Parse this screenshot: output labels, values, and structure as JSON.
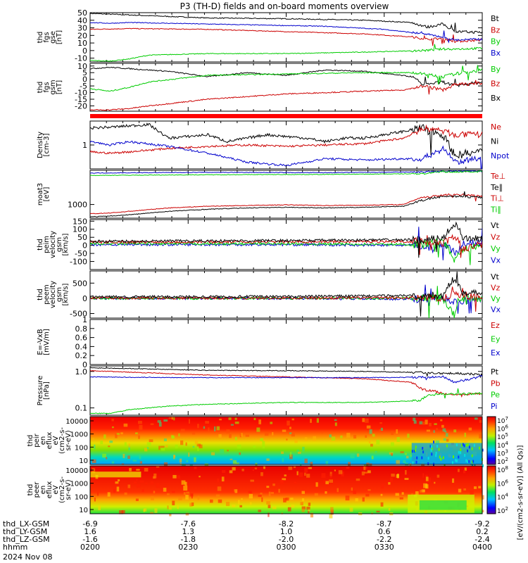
{
  "title": "P3 (TH-D) fields and on-board moments overview",
  "colors": {
    "black": "#000000",
    "red": "#cc0000",
    "green": "#00cc00",
    "blue": "#0000cc"
  },
  "chart_data": [
    {
      "type": "line",
      "ylabel": [
        "thd",
        "fgs",
        "gse",
        "[nT]"
      ],
      "ylim": [
        -15,
        50
      ],
      "yticks": [
        -10,
        0,
        10,
        20,
        30,
        40,
        50
      ],
      "legend": [
        {
          "name": "Bt",
          "color": "#000000"
        },
        {
          "name": "Bz",
          "color": "#cc0000"
        },
        {
          "name": "By",
          "color": "#00cc00"
        },
        {
          "name": "Bx",
          "color": "#0000cc"
        }
      ],
      "series": [
        {
          "name": "Bt",
          "color": "#000000",
          "noise": 0.6,
          "spikes": 4,
          "x": [
            0,
            0.05,
            0.1,
            0.3,
            0.5,
            0.7,
            0.82,
            0.86,
            0.9,
            0.93,
            1.0
          ],
          "y": [
            49,
            48,
            47,
            43,
            42,
            40,
            37,
            31,
            35,
            25,
            24
          ]
        },
        {
          "name": "Bz",
          "color": "#cc0000",
          "noise": 0.5,
          "spikes": 4,
          "x": [
            0,
            0.1,
            0.3,
            0.5,
            0.7,
            0.82,
            0.86,
            0.9,
            0.93,
            1.0
          ],
          "y": [
            28,
            29,
            28,
            25,
            22,
            18,
            15,
            16,
            12,
            14
          ]
        },
        {
          "name": "By",
          "color": "#00cc00",
          "noise": 0.5,
          "spikes": 6,
          "x": [
            0,
            0.05,
            0.1,
            0.15,
            0.3,
            0.5,
            0.7,
            0.85,
            0.9,
            0.93,
            1.0
          ],
          "y": [
            -13,
            -14,
            -11,
            -6,
            -4,
            -4,
            -2,
            0,
            2,
            2,
            3
          ]
        },
        {
          "name": "Bx",
          "color": "#0000cc",
          "noise": 0.5,
          "spikes": 4,
          "x": [
            0,
            0.05,
            0.1,
            0.2,
            0.4,
            0.6,
            0.75,
            0.85,
            0.9,
            0.93,
            1.0
          ],
          "y": [
            37,
            36,
            37,
            36,
            34,
            32,
            28,
            22,
            18,
            14,
            15
          ]
        }
      ]
    },
    {
      "type": "line",
      "ylabel": [
        "thd",
        "fgs",
        "gsm",
        "[nT]"
      ],
      "ylim": [
        -24,
        12
      ],
      "yticks": [
        -20,
        -15,
        -10,
        -5,
        0,
        5,
        10
      ],
      "legend": [
        {
          "name": "By",
          "color": "#00cc00"
        },
        {
          "name": "Bz",
          "color": "#cc0000"
        },
        {
          "name": "Bx",
          "color": "#000000"
        }
      ],
      "series": [
        {
          "name": "Bx",
          "color": "#000000",
          "noise": 0.4,
          "spikes": 6,
          "x": [
            0,
            0.05,
            0.1,
            0.2,
            0.3,
            0.4,
            0.5,
            0.6,
            0.7,
            0.82,
            0.85,
            0.9,
            0.93,
            1.0
          ],
          "y": [
            8,
            9,
            8,
            6,
            2,
            5,
            3,
            7,
            6,
            2,
            -4,
            -2,
            -5,
            -2
          ]
        },
        {
          "name": "By",
          "color": "#00cc00",
          "noise": 0.4,
          "spikes": 6,
          "x": [
            0,
            0.05,
            0.1,
            0.15,
            0.3,
            0.5,
            0.7,
            0.82,
            0.87,
            0.9,
            0.93,
            1.0
          ],
          "y": [
            -7,
            -9,
            -6,
            -2,
            3,
            4,
            5,
            5,
            3,
            2,
            4,
            7
          ]
        },
        {
          "name": "Bz",
          "color": "#cc0000",
          "noise": 0.4,
          "spikes": 6,
          "x": [
            0,
            0.05,
            0.1,
            0.15,
            0.3,
            0.5,
            0.7,
            0.8,
            0.85,
            0.9,
            0.93,
            1.0
          ],
          "y": [
            -23,
            -23,
            -22,
            -20,
            -15,
            -11,
            -9,
            -8,
            -5,
            -8,
            -4,
            -3
          ]
        }
      ]
    },
    {
      "type": "line",
      "ylabel": [
        "Density",
        "[cm-3]"
      ],
      "ylim": [
        -0.35,
        0.35
      ],
      "yticks": [
        0
      ],
      "yticklabels": [
        "1"
      ],
      "legend": [
        {
          "name": "Ne",
          "color": "#cc0000"
        },
        {
          "name": "Ni",
          "color": "#000000"
        },
        {
          "name": "Npot",
          "color": "#0000cc"
        }
      ],
      "series": [
        {
          "name": "Ni",
          "color": "#000000",
          "noise": 0.02,
          "spikes": 6,
          "x": [
            0,
            0.05,
            0.1,
            0.15,
            0.2,
            0.3,
            0.35,
            0.45,
            0.55,
            0.6,
            0.65,
            0.7,
            0.8,
            0.85,
            0.9,
            0.93,
            1.0
          ],
          "y": [
            0.25,
            0.26,
            0.28,
            0.3,
            0.1,
            0.15,
            0.05,
            0.15,
            0.1,
            0.05,
            0.1,
            0.1,
            0.2,
            0.25,
            0.15,
            -0.15,
            -0.1
          ]
        },
        {
          "name": "Ne",
          "color": "#cc0000",
          "noise": 0.015,
          "spikes": 3,
          "x": [
            0,
            0.05,
            0.1,
            0.2,
            0.3,
            0.4,
            0.5,
            0.6,
            0.7,
            0.8,
            0.85,
            0.9,
            0.93,
            1.0
          ],
          "y": [
            -0.1,
            -0.12,
            -0.1,
            -0.05,
            -0.02,
            0.0,
            -0.02,
            0.0,
            0.02,
            0.1,
            0.25,
            0.2,
            0.15,
            0.15
          ]
        },
        {
          "name": "Npot",
          "color": "#0000cc",
          "noise": 0.015,
          "spikes": 6,
          "x": [
            0,
            0.05,
            0.1,
            0.2,
            0.3,
            0.4,
            0.5,
            0.6,
            0.7,
            0.8,
            0.85,
            0.9,
            0.93,
            1.0
          ],
          "y": [
            0.05,
            0.0,
            0.05,
            -0.02,
            -0.12,
            -0.25,
            -0.3,
            -0.2,
            -0.22,
            -0.2,
            -0.2,
            -0.05,
            -0.25,
            -0.2
          ]
        }
      ]
    },
    {
      "type": "line",
      "ylabel": [
        "moat3",
        "[eV]"
      ],
      "ylim": [
        2.6,
        4.0
      ],
      "yticks": [
        3
      ],
      "yticklabels": [
        "1000"
      ],
      "legend": [
        {
          "name": "Te⊥",
          "color": "#cc0000"
        },
        {
          "name": "Te∥",
          "color": "#000000"
        },
        {
          "name": "Ti⊥",
          "color": "#cc0000"
        },
        {
          "name": "Ti∥",
          "color": "#00cc00"
        }
      ],
      "series": [
        {
          "name": "Ti⊥",
          "color": "#0000cc",
          "noise": 0.008,
          "spikes": 2,
          "x": [
            0,
            0.3,
            0.6,
            0.85,
            0.9,
            1.0
          ],
          "y": [
            3.92,
            3.94,
            3.93,
            3.95,
            3.97,
            3.98
          ]
        },
        {
          "name": "Ti∥",
          "color": "#00cc00",
          "noise": 0.008,
          "spikes": 2,
          "x": [
            0,
            0.3,
            0.6,
            0.85,
            0.87,
            0.9,
            1.0
          ],
          "y": [
            3.85,
            3.87,
            3.88,
            3.9,
            3.93,
            3.95,
            3.96
          ]
        },
        {
          "name": "Te⊥",
          "color": "#cc0000",
          "noise": 0.01,
          "spikes": 3,
          "x": [
            0,
            0.05,
            0.1,
            0.2,
            0.3,
            0.4,
            0.5,
            0.6,
            0.7,
            0.8,
            0.84,
            0.88,
            0.92,
            1.0
          ],
          "y": [
            2.73,
            2.75,
            2.8,
            2.9,
            2.95,
            2.97,
            2.99,
            2.97,
            2.98,
            3.0,
            3.2,
            3.25,
            3.3,
            3.25
          ]
        },
        {
          "name": "Te∥",
          "color": "#000000",
          "noise": 0.01,
          "spikes": 3,
          "x": [
            0,
            0.05,
            0.1,
            0.2,
            0.3,
            0.4,
            0.5,
            0.6,
            0.7,
            0.8,
            0.84,
            0.88,
            0.92,
            1.0
          ],
          "y": [
            2.64,
            2.66,
            2.7,
            2.8,
            2.86,
            2.9,
            2.92,
            2.9,
            2.92,
            2.95,
            3.1,
            3.2,
            3.25,
            3.2
          ]
        }
      ]
    },
    {
      "type": "line",
      "ylabel": [
        "thd",
        "peim",
        "velocity",
        "gsm",
        "[km/s]"
      ],
      "ylim": [
        -150,
        160
      ],
      "yticks": [
        -100,
        -50,
        0,
        50,
        100,
        150
      ],
      "legend": [
        {
          "name": "Vt",
          "color": "#000000"
        },
        {
          "name": "Vz",
          "color": "#cc0000"
        },
        {
          "name": "Vy",
          "color": "#00cc00"
        },
        {
          "name": "Vx",
          "color": "#0000cc"
        }
      ],
      "series": [
        {
          "name": "Vx",
          "color": "#0000cc",
          "noise": 8,
          "spikes": 8,
          "x": [
            0,
            0.5,
            0.85,
            0.88,
            0.9,
            0.93,
            0.95,
            1.0
          ],
          "y": [
            5,
            5,
            0,
            -30,
            20,
            -50,
            10,
            10
          ]
        },
        {
          "name": "Vy",
          "color": "#00cc00",
          "noise": 8,
          "spikes": 8,
          "x": [
            0,
            0.5,
            0.85,
            0.9,
            0.93,
            0.95,
            1.0
          ],
          "y": [
            10,
            10,
            5,
            30,
            -90,
            -20,
            0
          ]
        },
        {
          "name": "Vz",
          "color": "#cc0000",
          "noise": 8,
          "spikes": 8,
          "x": [
            0,
            0.5,
            0.85,
            0.9,
            0.93,
            0.95,
            1.0
          ],
          "y": [
            20,
            22,
            25,
            10,
            60,
            -20,
            5
          ]
        },
        {
          "name": "Vt",
          "color": "#000000",
          "noise": 8,
          "spikes": 8,
          "x": [
            0,
            0.5,
            0.85,
            0.9,
            0.93,
            0.95,
            1.0
          ],
          "y": [
            25,
            30,
            35,
            40,
            140,
            50,
            40
          ]
        }
      ]
    },
    {
      "type": "line",
      "ylabel": [
        "thd",
        "peem",
        "velocity",
        "gsm",
        "[km/s]"
      ],
      "ylim": [
        -650,
        900
      ],
      "yticks": [
        -500,
        0,
        500
      ],
      "legend": [
        {
          "name": "Vt",
          "color": "#000000"
        },
        {
          "name": "Vz",
          "color": "#cc0000"
        },
        {
          "name": "Vy",
          "color": "#00cc00"
        },
        {
          "name": "Vx",
          "color": "#0000cc"
        }
      ],
      "series": [
        {
          "name": "Vx",
          "color": "#0000cc",
          "noise": 40,
          "spikes": 10,
          "x": [
            0,
            0.5,
            0.9,
            0.93,
            1.0
          ],
          "y": [
            0,
            0,
            -30,
            -100,
            -20
          ]
        },
        {
          "name": "Vy",
          "color": "#00cc00",
          "noise": 40,
          "spikes": 10,
          "x": [
            0,
            0.5,
            0.9,
            0.93,
            0.94,
            1.0
          ],
          "y": [
            0,
            0,
            10,
            -600,
            0,
            0
          ]
        },
        {
          "name": "Vz",
          "color": "#cc0000",
          "noise": 40,
          "spikes": 10,
          "x": [
            0,
            0.5,
            0.9,
            0.93,
            1.0
          ],
          "y": [
            10,
            10,
            20,
            150,
            30
          ]
        },
        {
          "name": "Vt",
          "color": "#000000",
          "noise": 40,
          "spikes": 10,
          "x": [
            0,
            0.5,
            0.9,
            0.93,
            0.95,
            1.0
          ],
          "y": [
            50,
            60,
            100,
            700,
            200,
            150
          ]
        }
      ]
    },
    {
      "type": "line",
      "ylabel": [
        "E=-VxB",
        "[mV/m]"
      ],
      "ylim": [
        0,
        1.0
      ],
      "yticks": [
        0.0,
        0.2,
        0.4,
        0.6,
        0.8,
        1.0
      ],
      "legend": [
        {
          "name": "Ez",
          "color": "#cc0000"
        },
        {
          "name": "Ey",
          "color": "#00cc00"
        },
        {
          "name": "Ex",
          "color": "#0000cc"
        }
      ],
      "series": []
    },
    {
      "type": "line",
      "ylabel": [
        "Pressure",
        "[nPa]"
      ],
      "ylim": [
        -1.2,
        0.15
      ],
      "yticks": [
        -1,
        0
      ],
      "yticklabels": [
        "0.1",
        "1.0"
      ],
      "legend": [
        {
          "name": "Pt",
          "color": "#000000"
        },
        {
          "name": "Pb",
          "color": "#cc0000"
        },
        {
          "name": "Pe",
          "color": "#00cc00"
        },
        {
          "name": "Pi",
          "color": "#0000cc"
        }
      ],
      "series": [
        {
          "name": "Pt",
          "color": "#000000",
          "noise": 0.01,
          "spikes": 3,
          "x": [
            0,
            0.05,
            0.1,
            0.3,
            0.5,
            0.7,
            0.85,
            0.9,
            0.93,
            1.0
          ],
          "y": [
            0.1,
            0.09,
            0.08,
            0.03,
            0.02,
            0.0,
            -0.03,
            -0.05,
            -0.05,
            -0.08
          ]
        },
        {
          "name": "Pb",
          "color": "#cc0000",
          "noise": 0.01,
          "spikes": 4,
          "x": [
            0,
            0.05,
            0.1,
            0.3,
            0.5,
            0.7,
            0.82,
            0.85,
            0.88,
            0.9,
            0.93,
            1.0
          ],
          "y": [
            0.02,
            0.0,
            -0.02,
            -0.1,
            -0.15,
            -0.2,
            -0.3,
            -0.5,
            -0.55,
            -0.6,
            -0.65,
            -0.6
          ]
        },
        {
          "name": "Pe",
          "color": "#00cc00",
          "noise": 0.01,
          "spikes": 4,
          "x": [
            0,
            0.05,
            0.1,
            0.2,
            0.3,
            0.5,
            0.7,
            0.84,
            0.86,
            0.9,
            0.93,
            1.0
          ],
          "y": [
            -1.15,
            -1.15,
            -1.05,
            -0.95,
            -0.9,
            -0.85,
            -0.85,
            -0.8,
            -0.65,
            -0.6,
            -0.62,
            -0.6
          ]
        },
        {
          "name": "Pi",
          "color": "#0000cc",
          "noise": 0.01,
          "spikes": 3,
          "x": [
            0,
            0.1,
            0.3,
            0.5,
            0.7,
            0.85,
            0.9,
            0.93,
            1.0
          ],
          "y": [
            -0.15,
            -0.16,
            -0.17,
            -0.17,
            -0.17,
            -0.16,
            -0.15,
            -0.3,
            -0.13
          ]
        }
      ]
    },
    {
      "type": "heatmap",
      "ylabel": [
        "thd",
        "peir",
        "en",
        "eflux",
        "eV",
        "(cm2-s-",
        "sr-eV)"
      ],
      "yticks": [
        "10000",
        "1000",
        "100",
        "10"
      ],
      "colorbar_ticks": [
        "10^7",
        "10^6",
        "10^5",
        "10^4",
        "10^3",
        "10^2"
      ]
    },
    {
      "type": "heatmap",
      "ylabel": [
        "thd",
        "peer",
        "en",
        "eflux",
        "eV",
        "(cm2-s-",
        "sr-eV)"
      ],
      "yticks": [
        "10000",
        "1000",
        "100",
        "10"
      ],
      "colorbar_ticks": [
        "10^8",
        "10^6",
        "10^4",
        "10^2"
      ],
      "colorbar_label": "[eV/(cm2-s-sr-eV)] (All Qs)]"
    }
  ],
  "x_axis": {
    "rows": [
      {
        "label": "thd_LX-GSM",
        "values": [
          "-6.9",
          "-7.6",
          "-8.2",
          "-8.7",
          "-9.2"
        ]
      },
      {
        "label": "thd_LY-GSM",
        "values": [
          "1.6",
          "1.3",
          "1.0",
          "0.6",
          "0.2"
        ]
      },
      {
        "label": "thd_LZ-GSM",
        "values": [
          "-1.6",
          "-1.8",
          "-2.0",
          "-2.2",
          "-2.4"
        ]
      },
      {
        "label": "hhmm",
        "values": [
          "0200",
          "0230",
          "0300",
          "0330",
          "0400"
        ]
      }
    ],
    "date": "2024 Nov 08"
  }
}
